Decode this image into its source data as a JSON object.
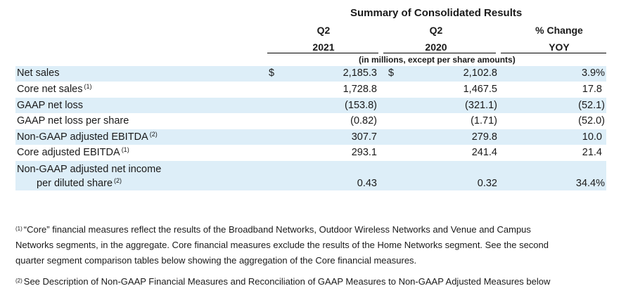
{
  "title": "Summary of Consolidated Results",
  "columns": [
    {
      "line1": "Q2",
      "line2": "2021"
    },
    {
      "line1": "Q2",
      "line2": "2020"
    },
    {
      "line1": "% Change",
      "line2": "YOY"
    }
  ],
  "units_note": "(in millions, except per share amounts)",
  "rows": [
    {
      "label": "Net sales",
      "sup": "",
      "cur1": "$",
      "v1": "2,185.3",
      "cur2": "$",
      "v2": "2,102.8",
      "v3": "3.9%"
    },
    {
      "label": "Core net sales",
      "sup": "(1)",
      "v1": "1,728.8",
      "v2": "1,467.5",
      "v3": "17.8"
    },
    {
      "label": "GAAP net loss",
      "sup": "",
      "v1": "(153.8)",
      "v2": "(321.1)",
      "v3": "(52.1)"
    },
    {
      "label": "GAAP net loss per share",
      "sup": "",
      "v1": "(0.82)",
      "v2": "(1.71)",
      "v3": "(52.0)"
    },
    {
      "label": "Non-GAAP adjusted EBITDA",
      "sup": "(2)",
      "v1": "307.7",
      "v2": "279.8",
      "v3": "10.0"
    },
    {
      "label": "Core adjusted EBITDA",
      "sup": "(1)",
      "v1": "293.1",
      "v2": "241.4",
      "v3": "21.4"
    },
    {
      "label": "Non-GAAP adjusted net income",
      "label2": "per diluted share",
      "sup": "(2)",
      "v1": "0.43",
      "v2": "0.32",
      "v3": "34.4%"
    }
  ],
  "footnotes": [
    {
      "marker": "(1)",
      "lines": [
        "“Core” financial measures reflect the results of the Broadband Networks, Outdoor Wireless Networks and Venue and Campus",
        "Networks segments, in the aggregate. Core financial measures exclude the results of the Home Networks segment. See the second",
        "quarter segment comparison tables below showing the aggregation of the Core financial measures."
      ]
    },
    {
      "marker": "(2)",
      "lines": [
        "See Description of Non-GAAP Financial Measures and Reconciliation of GAAP Measures to Non-GAAP Adjusted Measures below"
      ]
    }
  ]
}
